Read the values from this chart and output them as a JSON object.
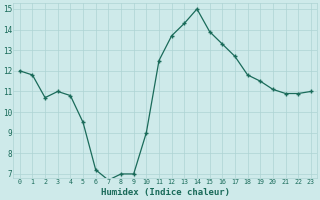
{
  "x": [
    0,
    1,
    2,
    3,
    4,
    5,
    6,
    7,
    8,
    9,
    10,
    11,
    12,
    13,
    14,
    15,
    16,
    17,
    18,
    19,
    20,
    21,
    22,
    23
  ],
  "y": [
    12.0,
    11.8,
    10.7,
    11.0,
    10.8,
    9.5,
    7.2,
    6.7,
    7.0,
    7.0,
    9.0,
    12.5,
    13.7,
    14.3,
    15.0,
    13.9,
    13.3,
    12.7,
    11.8,
    11.5,
    11.1,
    10.9,
    10.9,
    11.0
  ],
  "xlabel": "Humidex (Indice chaleur)",
  "ylim_min": 6.8,
  "ylim_max": 15.3,
  "xlim_min": -0.5,
  "xlim_max": 23.5,
  "yticks": [
    7,
    8,
    9,
    10,
    11,
    12,
    13,
    14,
    15
  ],
  "xticks": [
    0,
    1,
    2,
    3,
    4,
    5,
    6,
    7,
    8,
    9,
    10,
    11,
    12,
    13,
    14,
    15,
    16,
    17,
    18,
    19,
    20,
    21,
    22,
    23
  ],
  "line_color": "#1a6b5a",
  "marker_color": "#1a6b5a",
  "bg_color": "#ceeaea",
  "grid_color": "#aed4d4",
  "text_color": "#1a6b5a"
}
